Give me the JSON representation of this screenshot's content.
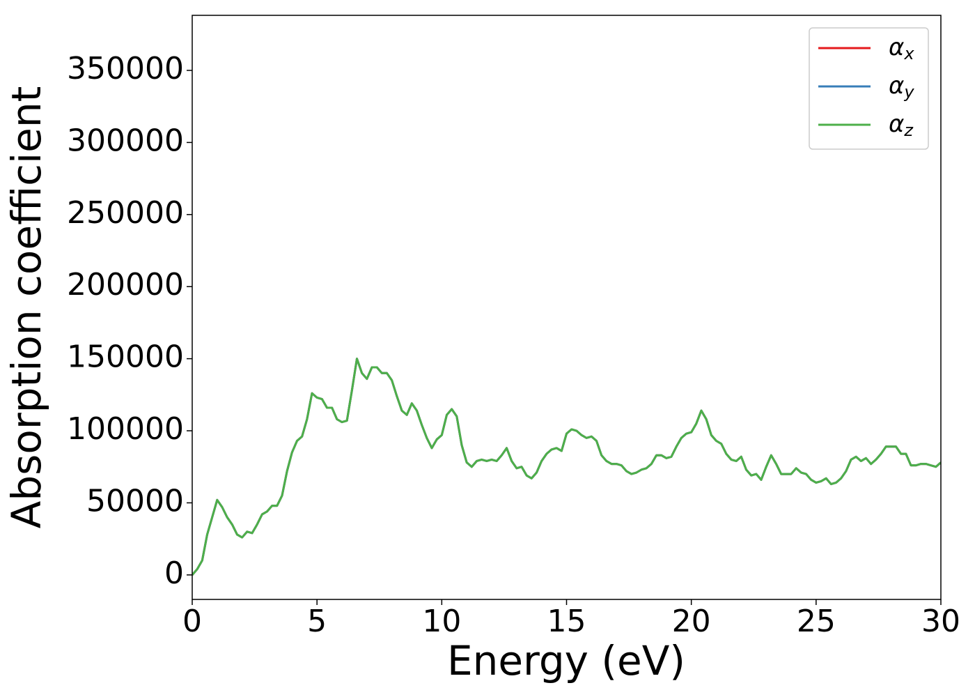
{
  "chart_data": {
    "type": "line",
    "xlabel": "Energy (eV)",
    "ylabel": "Absorption coefficient",
    "x": [
      0,
      0.2,
      0.4,
      0.6,
      0.8,
      1,
      1.2,
      1.4,
      1.6,
      1.8,
      2,
      2.2,
      2.4,
      2.6,
      2.8,
      3,
      3.2,
      3.4,
      3.6,
      3.8,
      4,
      4.2,
      4.4,
      4.6,
      4.8,
      5,
      5.2,
      5.4,
      5.6,
      5.8,
      6,
      6.2,
      6.4,
      6.6,
      6.8,
      7,
      7.2,
      7.4,
      7.6,
      7.8,
      8,
      8.2,
      8.4,
      8.6,
      8.8,
      9,
      9.2,
      9.4,
      9.6,
      9.8,
      10,
      10.2,
      10.4,
      10.6,
      10.8,
      11,
      11.2,
      11.4,
      11.6,
      11.8,
      12,
      12.2,
      12.4,
      12.6,
      12.8,
      13,
      13.2,
      13.4,
      13.6,
      13.8,
      14,
      14.2,
      14.4,
      14.6,
      14.8,
      15,
      15.2,
      15.4,
      15.6,
      15.8,
      16,
      16.2,
      16.4,
      16.6,
      16.8,
      17,
      17.2,
      17.4,
      17.6,
      17.8,
      18,
      18.2,
      18.4,
      18.6,
      18.8,
      19,
      19.2,
      19.4,
      19.6,
      19.8,
      20,
      20.2,
      20.4,
      20.6,
      20.8,
      21,
      21.2,
      21.4,
      21.6,
      21.8,
      22,
      22.2,
      22.4,
      22.6,
      22.8,
      23,
      23.2,
      23.4,
      23.6,
      23.8,
      24,
      24.2,
      24.4,
      24.6,
      24.8,
      25,
      25.2,
      25.4,
      25.6,
      25.8,
      26,
      26.2,
      26.4,
      26.6,
      26.8,
      27,
      27.2,
      27.4,
      27.6,
      27.8,
      28,
      28.2,
      28.4,
      28.6,
      28.8,
      29,
      29.2,
      29.4,
      29.6,
      29.8,
      30
    ],
    "series": [
      {
        "name": "αx",
        "color": "#e41a1c",
        "values": [
          0,
          4000,
          10000,
          28000,
          40000,
          52000,
          47000,
          40000,
          35000,
          28000,
          26000,
          30000,
          29000,
          35000,
          42000,
          44000,
          48000,
          48000,
          55000,
          72000,
          85000,
          93000,
          96000,
          108000,
          126000,
          123000,
          122000,
          116000,
          116000,
          108000,
          106000,
          107000,
          128000,
          150000,
          140000,
          136000,
          144000,
          144000,
          140000,
          140000,
          135000,
          124000,
          114000,
          111000,
          119000,
          114000,
          104000,
          95000,
          88000,
          94000,
          97000,
          111000,
          115000,
          110000,
          90000,
          78000,
          75000,
          79000,
          80000,
          79000,
          80000,
          79000,
          83000,
          88000,
          79000,
          74000,
          75000,
          69000,
          67000,
          71000,
          79000,
          84000,
          87000,
          88000,
          86000,
          98000,
          101000,
          100000,
          97000,
          95000,
          96000,
          93000,
          83000,
          79000,
          77000,
          77000,
          76000,
          72000,
          70000,
          71000,
          73000,
          74000,
          77000,
          83000,
          83000,
          81000,
          82000,
          89000,
          95000,
          98000,
          99000,
          105000,
          114000,
          108000,
          97000,
          93000,
          91000,
          84000,
          80000,
          79000,
          82000,
          73000,
          69000,
          70000,
          66000,
          75000,
          83000,
          77000,
          70000,
          70000,
          70000,
          74000,
          71000,
          70000,
          66000,
          64000,
          65000,
          67000,
          63000,
          64000,
          67000,
          72000,
          80000,
          82000,
          79000,
          81000,
          77000,
          80000,
          84000,
          89000,
          89000,
          89000,
          84000,
          84000,
          76000,
          76000,
          77000,
          77000,
          76000,
          75000,
          78000
        ]
      },
      {
        "name": "αy",
        "color": "#377eb8",
        "values": [
          0,
          4000,
          10000,
          28000,
          40000,
          52000,
          47000,
          40000,
          35000,
          28000,
          26000,
          30000,
          29000,
          35000,
          42000,
          44000,
          48000,
          48000,
          55000,
          72000,
          85000,
          93000,
          96000,
          108000,
          126000,
          123000,
          122000,
          116000,
          116000,
          108000,
          106000,
          107000,
          128000,
          150000,
          140000,
          136000,
          144000,
          144000,
          140000,
          140000,
          135000,
          124000,
          114000,
          111000,
          119000,
          114000,
          104000,
          95000,
          88000,
          94000,
          97000,
          111000,
          115000,
          110000,
          90000,
          78000,
          75000,
          79000,
          80000,
          79000,
          80000,
          79000,
          83000,
          88000,
          79000,
          74000,
          75000,
          69000,
          67000,
          71000,
          79000,
          84000,
          87000,
          88000,
          86000,
          98000,
          101000,
          100000,
          97000,
          95000,
          96000,
          93000,
          83000,
          79000,
          77000,
          77000,
          76000,
          72000,
          70000,
          71000,
          73000,
          74000,
          77000,
          83000,
          83000,
          81000,
          82000,
          89000,
          95000,
          98000,
          99000,
          105000,
          114000,
          108000,
          97000,
          93000,
          91000,
          84000,
          80000,
          79000,
          82000,
          73000,
          69000,
          70000,
          66000,
          75000,
          83000,
          77000,
          70000,
          70000,
          70000,
          74000,
          71000,
          70000,
          66000,
          64000,
          65000,
          67000,
          63000,
          64000,
          67000,
          72000,
          80000,
          82000,
          79000,
          81000,
          77000,
          80000,
          84000,
          89000,
          89000,
          89000,
          84000,
          84000,
          76000,
          76000,
          77000,
          77000,
          76000,
          75000,
          78000
        ]
      },
      {
        "name": "αz",
        "color": "#4daf4a",
        "values": [
          0,
          4000,
          10000,
          28000,
          40000,
          52000,
          47000,
          40000,
          35000,
          28000,
          26000,
          30000,
          29000,
          35000,
          42000,
          44000,
          48000,
          48000,
          55000,
          72000,
          85000,
          93000,
          96000,
          108000,
          126000,
          123000,
          122000,
          116000,
          116000,
          108000,
          106000,
          107000,
          128000,
          150000,
          140000,
          136000,
          144000,
          144000,
          140000,
          140000,
          135000,
          124000,
          114000,
          111000,
          119000,
          114000,
          104000,
          95000,
          88000,
          94000,
          97000,
          111000,
          115000,
          110000,
          90000,
          78000,
          75000,
          79000,
          80000,
          79000,
          80000,
          79000,
          83000,
          88000,
          79000,
          74000,
          75000,
          69000,
          67000,
          71000,
          79000,
          84000,
          87000,
          88000,
          86000,
          98000,
          101000,
          100000,
          97000,
          95000,
          96000,
          93000,
          83000,
          79000,
          77000,
          77000,
          76000,
          72000,
          70000,
          71000,
          73000,
          74000,
          77000,
          83000,
          83000,
          81000,
          82000,
          89000,
          95000,
          98000,
          99000,
          105000,
          114000,
          108000,
          97000,
          93000,
          91000,
          84000,
          80000,
          79000,
          82000,
          73000,
          69000,
          70000,
          66000,
          75000,
          83000,
          77000,
          70000,
          70000,
          70000,
          74000,
          71000,
          70000,
          66000,
          64000,
          65000,
          67000,
          63000,
          64000,
          67000,
          72000,
          80000,
          82000,
          79000,
          81000,
          77000,
          80000,
          84000,
          89000,
          89000,
          89000,
          84000,
          84000,
          76000,
          76000,
          77000,
          77000,
          76000,
          75000,
          78000
        ]
      }
    ],
    "xlim": [
      0,
      30
    ],
    "xticks": [
      0,
      5,
      10,
      15,
      20,
      25,
      30
    ],
    "ylim": [
      -17000,
      388200
    ],
    "yticks": [
      0,
      50000,
      100000,
      150000,
      200000,
      250000,
      300000,
      350000
    ],
    "legend": "upper right",
    "grid": false
  }
}
